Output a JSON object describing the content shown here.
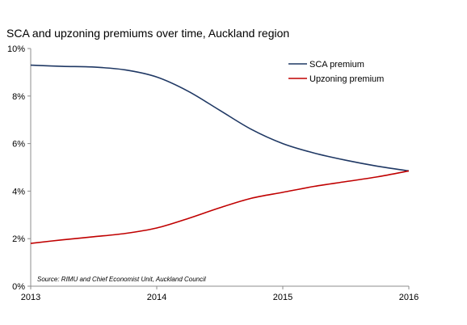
{
  "chart_data": {
    "type": "line",
    "title": "SCA and upzoning premiums over time, Auckland region",
    "x_ticks": [
      "2013",
      "2014",
      "2015",
      "2016"
    ],
    "y_ticks": [
      "0%",
      "2%",
      "4%",
      "6%",
      "8%",
      "10%"
    ],
    "xlim": [
      2013,
      2016
    ],
    "ylim": [
      0,
      10
    ],
    "grid": false,
    "legend_position": "top-right",
    "source": "Source: RIMU and Chief Economist Unit, Auckland Council",
    "series": [
      {
        "name": "SCA premium",
        "color": "#1f3864",
        "x": [
          2013.0,
          2013.25,
          2013.5,
          2013.75,
          2014.0,
          2014.25,
          2014.5,
          2014.75,
          2015.0,
          2015.25,
          2015.5,
          2015.75,
          2016.0
        ],
        "y": [
          9.3,
          9.25,
          9.22,
          9.1,
          8.8,
          8.2,
          7.4,
          6.6,
          6.0,
          5.6,
          5.3,
          5.05,
          4.85
        ]
      },
      {
        "name": "Upzoning premium",
        "color": "#c00000",
        "x": [
          2013.0,
          2013.25,
          2013.5,
          2013.75,
          2014.0,
          2014.25,
          2014.5,
          2014.75,
          2015.0,
          2015.25,
          2015.5,
          2015.75,
          2016.0
        ],
        "y": [
          1.8,
          1.95,
          2.08,
          2.22,
          2.45,
          2.85,
          3.3,
          3.7,
          3.95,
          4.2,
          4.4,
          4.6,
          4.85
        ]
      }
    ]
  }
}
